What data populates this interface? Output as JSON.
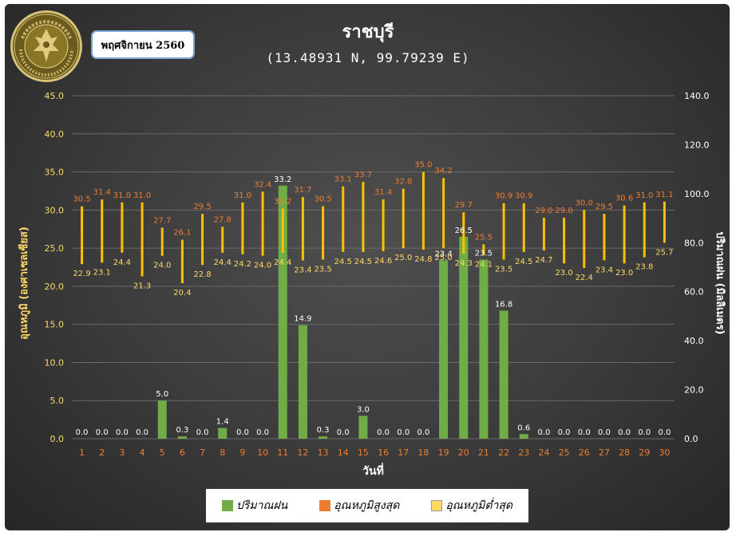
{
  "header": {
    "title": "ราชบุรี",
    "subtitle": "(13.48931 N, 99.79239 E)",
    "month_label": "พฤศจิกายน 2560",
    "seal_text": "METEOROLOGICAL DEPARTMENT"
  },
  "colors": {
    "rain": "#70ad47",
    "tmax": "#ed7d31",
    "tmin": "#ffd966",
    "bar_line": "#ffc000",
    "axis_left": "#ffd966",
    "axis_right": "#ffffff",
    "x_ticks": "#ed7d31",
    "max_labels": "#ed7d31",
    "min_labels": "#ffd966",
    "rain_labels": "#ffffff",
    "gridline": "#6a6a6a"
  },
  "chart_data": {
    "type": "bar",
    "xlabel": "วันที่",
    "ylabel_left": "อุณหภูมิ (องศาเซลเซียส)",
    "ylabel_right": "ปริมาณฝน (มิลลิเมตร)",
    "ylim_left": [
      0,
      45
    ],
    "ylim_right": [
      0,
      140
    ],
    "left_ticks": [
      "0.0",
      "5.0",
      "10.0",
      "15.0",
      "20.0",
      "25.0",
      "30.0",
      "35.0",
      "40.0",
      "45.0"
    ],
    "right_ticks": [
      "0.0",
      "20.0",
      "40.0",
      "60.0",
      "80.0",
      "100.0",
      "120.0",
      "140.0"
    ],
    "grid": true,
    "legend_position": "bottom",
    "categories": [
      "1",
      "2",
      "3",
      "4",
      "5",
      "6",
      "7",
      "8",
      "9",
      "10",
      "11",
      "12",
      "13",
      "14",
      "15",
      "16",
      "17",
      "18",
      "19",
      "20",
      "21",
      "22",
      "23",
      "24",
      "25",
      "26",
      "27",
      "28",
      "29",
      "30"
    ],
    "series": [
      {
        "name": "ปริมาณฝน",
        "axis": "left-scale",
        "values": [
          0.0,
          0.0,
          0.0,
          0.0,
          5.0,
          0.3,
          0.0,
          1.4,
          0.0,
          0.0,
          33.2,
          14.9,
          0.3,
          0.0,
          3.0,
          0.0,
          0.0,
          0.0,
          23.4,
          26.5,
          23.5,
          16.8,
          0.6,
          0.0,
          0.0,
          0.0,
          0.0,
          0.0,
          0.0,
          0.0
        ]
      },
      {
        "name": "อุณหภูมิสูงสุด",
        "values": [
          30.5,
          31.4,
          31.0,
          31.0,
          27.7,
          26.1,
          29.5,
          27.8,
          31.0,
          32.4,
          30.2,
          31.7,
          30.5,
          33.1,
          33.7,
          31.4,
          32.8,
          35.0,
          34.2,
          29.7,
          25.5,
          30.9,
          30.9,
          29.0,
          29.0,
          30.0,
          29.5,
          30.6,
          31.0,
          31.1
        ]
      },
      {
        "name": "อุณหภูมิต่ำสุด",
        "values": [
          22.9,
          23.1,
          24.4,
          21.3,
          24.0,
          20.4,
          22.8,
          24.4,
          24.2,
          24.0,
          24.4,
          23.4,
          23.5,
          24.5,
          24.5,
          24.6,
          25.0,
          24.8,
          25.0,
          24.3,
          24.1,
          23.5,
          24.5,
          24.7,
          23.0,
          22.4,
          23.4,
          23.0,
          23.8,
          25.7
        ]
      }
    ]
  }
}
